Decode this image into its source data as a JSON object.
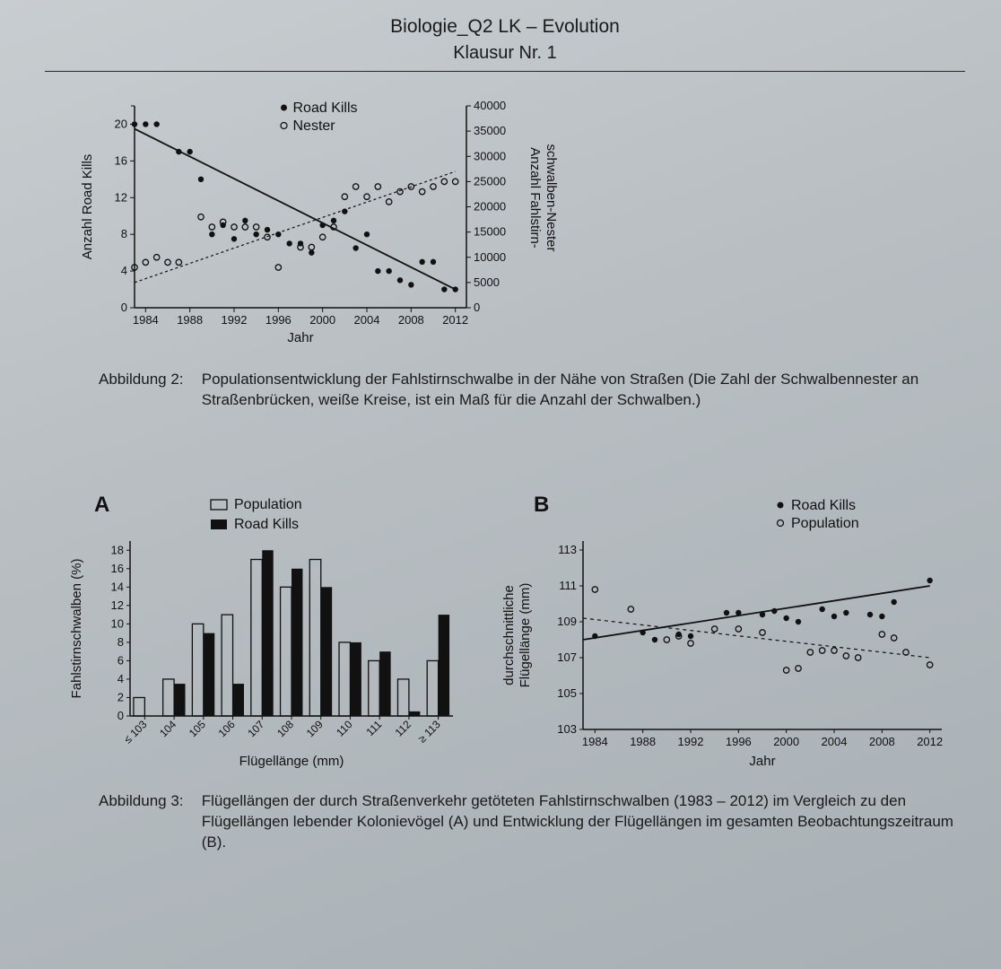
{
  "header": {
    "title": "Biologie_Q2 LK – Evolution",
    "subtitle": "Klausur Nr. 1"
  },
  "colors": {
    "ink": "#1a1a1a",
    "bg": "#b8bec2",
    "fillWhite": "#e8ecee"
  },
  "fig2": {
    "legend": {
      "filled": "Road Kills",
      "open": "Nester"
    },
    "xlabel": "Jahr",
    "ylabel_left": "Anzahl Road Kills",
    "ylabel_right": "Anzahl Fahlstirn-\nschwalben-Nester",
    "x_ticks": [
      1984,
      1988,
      1992,
      1996,
      2000,
      2004,
      2008,
      2012
    ],
    "x_range": [
      1983,
      2013
    ],
    "y_left_ticks": [
      0,
      4,
      8,
      12,
      16,
      20
    ],
    "y_left_range": [
      0,
      22
    ],
    "y_right_ticks": [
      0,
      5000,
      10000,
      15000,
      20000,
      25000,
      30000,
      35000,
      40000
    ],
    "y_right_range": [
      0,
      40000
    ],
    "road_kills": [
      [
        1983,
        20
      ],
      [
        1984,
        20
      ],
      [
        1985,
        20
      ],
      [
        1987,
        17
      ],
      [
        1988,
        17
      ],
      [
        1989,
        14
      ],
      [
        1990,
        8
      ],
      [
        1991,
        9
      ],
      [
        1992,
        7.5
      ],
      [
        1993,
        9.5
      ],
      [
        1994,
        8
      ],
      [
        1995,
        8.5
      ],
      [
        1996,
        8
      ],
      [
        1997,
        7
      ],
      [
        1998,
        7
      ],
      [
        1999,
        6
      ],
      [
        2000,
        9
      ],
      [
        2001,
        9.5
      ],
      [
        2002,
        10.5
      ],
      [
        2003,
        6.5
      ],
      [
        2004,
        8
      ],
      [
        2005,
        4
      ],
      [
        2006,
        4
      ],
      [
        2007,
        3
      ],
      [
        2008,
        2.5
      ],
      [
        2009,
        5
      ],
      [
        2010,
        5
      ],
      [
        2011,
        2
      ],
      [
        2012,
        2
      ]
    ],
    "road_kills_line": [
      [
        1983,
        19.5
      ],
      [
        2012,
        2
      ]
    ],
    "nests": [
      [
        1983,
        4
      ],
      [
        1984,
        4.5
      ],
      [
        1985,
        5
      ],
      [
        1986,
        4.5
      ],
      [
        1987,
        4.5
      ],
      [
        1989,
        9
      ],
      [
        1990,
        8
      ],
      [
        1991,
        8.5
      ],
      [
        1992,
        8
      ],
      [
        1993,
        8
      ],
      [
        1994,
        8
      ],
      [
        1995,
        7
      ],
      [
        1996,
        4
      ],
      [
        1998,
        6
      ],
      [
        1999,
        6
      ],
      [
        2000,
        7
      ],
      [
        2001,
        8
      ],
      [
        2002,
        11
      ],
      [
        2003,
        12
      ],
      [
        2004,
        11
      ],
      [
        2005,
        12
      ],
      [
        2006,
        10.5
      ],
      [
        2007,
        11.5
      ],
      [
        2008,
        12
      ],
      [
        2009,
        11.5
      ],
      [
        2010,
        12
      ],
      [
        2011,
        12.5
      ],
      [
        2012,
        12.5
      ]
    ],
    "nests_line_y": [
      [
        1983,
        5000
      ],
      [
        2012,
        27000
      ]
    ],
    "nests_scale_note": "right-axis values: y_i above are left-axis proxies; nests plotted via right axis mapping nest=y*2000",
    "caption_label": "Abbildung 2:",
    "caption_body": "Populationsentwicklung der Fahlstirnschwalbe in der Nähe von Straßen\n(Die Zahl der Schwalbennester an Straßenbrücken, weiße Kreise, ist ein Maß für die Anzahl der Schwalben.)"
  },
  "fig3": {
    "panelA": {
      "label": "A",
      "legend": {
        "open": "Population",
        "filled": "Road Kills"
      },
      "xlabel": "Flügellänge (mm)",
      "ylabel": "Fahlstirnschwalben (%)",
      "y_ticks": [
        0,
        2,
        4,
        6,
        8,
        10,
        12,
        14,
        16,
        18
      ],
      "y_range": [
        0,
        19
      ],
      "categories": [
        "≤ 103",
        "104",
        "105",
        "106",
        "107",
        "108",
        "109",
        "110",
        "111",
        "112",
        "≥ 113"
      ],
      "population": [
        2,
        4,
        10,
        11,
        17,
        14,
        17,
        8,
        6,
        4,
        6
      ],
      "road_kills": [
        0,
        3.5,
        9,
        3.5,
        18,
        16,
        14,
        8,
        7,
        0.5,
        11
      ],
      "bar_width": 0.38
    },
    "panelB": {
      "label": "B",
      "legend": {
        "filled": "Road Kills",
        "open": "Population"
      },
      "xlabel": "Jahr",
      "ylabel": "durchschnittliche\nFlügellänge (mm)",
      "x_ticks": [
        1984,
        1988,
        1992,
        1996,
        2000,
        2004,
        2008,
        2012
      ],
      "x_range": [
        1983,
        2013
      ],
      "y_ticks": [
        103,
        105,
        107,
        109,
        111,
        113
      ],
      "y_range": [
        103,
        113.5
      ],
      "road_kills": [
        [
          1984,
          108.2
        ],
        [
          1988,
          108.4
        ],
        [
          1989,
          108.0
        ],
        [
          1991,
          108.3
        ],
        [
          1992,
          108.2
        ],
        [
          1995,
          109.5
        ],
        [
          1996,
          109.5
        ],
        [
          1998,
          109.4
        ],
        [
          1999,
          109.6
        ],
        [
          2000,
          109.2
        ],
        [
          2001,
          109.0
        ],
        [
          2003,
          109.7
        ],
        [
          2004,
          109.3
        ],
        [
          2005,
          109.5
        ],
        [
          2007,
          109.4
        ],
        [
          2008,
          109.3
        ],
        [
          2009,
          110.1
        ],
        [
          2012,
          111.3
        ]
      ],
      "road_kills_line": [
        [
          1983,
          108.0
        ],
        [
          2012,
          111.0
        ]
      ],
      "population": [
        [
          1984,
          110.8
        ],
        [
          1987,
          109.7
        ],
        [
          1990,
          108.0
        ],
        [
          1991,
          108.2
        ],
        [
          1992,
          107.8
        ],
        [
          1994,
          108.6
        ],
        [
          1996,
          108.6
        ],
        [
          1998,
          108.4
        ],
        [
          2000,
          106.3
        ],
        [
          2001,
          106.4
        ],
        [
          2002,
          107.3
        ],
        [
          2003,
          107.4
        ],
        [
          2004,
          107.4
        ],
        [
          2005,
          107.1
        ],
        [
          2006,
          107.0
        ],
        [
          2008,
          108.3
        ],
        [
          2009,
          108.1
        ],
        [
          2010,
          107.3
        ],
        [
          2012,
          106.6
        ]
      ],
      "population_line": [
        [
          1983,
          109.2
        ],
        [
          2012,
          107.0
        ]
      ]
    },
    "caption_label": "Abbildung 3:",
    "caption_body": "Flügellängen der durch Straßenverkehr getöteten Fahlstirnschwalben (1983 – 2012) im Vergleich zu den Flügellängen lebender Kolonievögel (A) und Entwicklung der Flügellängen im gesamten Beobachtungszeitraum (B)."
  }
}
